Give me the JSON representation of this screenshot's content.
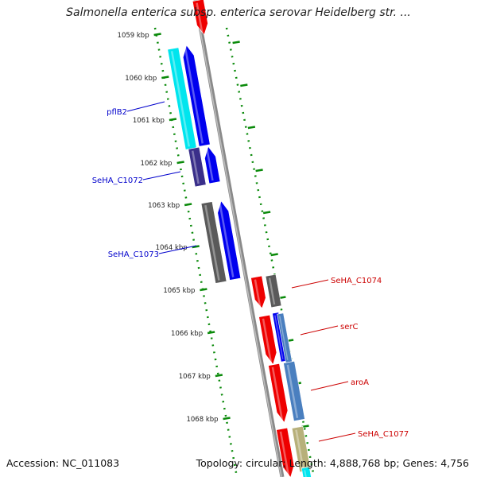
{
  "title": "Salmonella enterica subsp. enterica serovar Heidelberg str. ...",
  "footer": {
    "accession": "Accession: NC_011083",
    "summary": "Topology: circular; Length: 4,888,768 bp; Genes: 4,756"
  },
  "ticks": [
    {
      "label": "1059 kbp",
      "kbp": 1059
    },
    {
      "label": "1060 kbp",
      "kbp": 1060
    },
    {
      "label": "1061 kbp",
      "kbp": 1061
    },
    {
      "label": "1062 kbp",
      "kbp": 1062
    },
    {
      "label": "1063 kbp",
      "kbp": 1063
    },
    {
      "label": "1064 kbp",
      "kbp": 1064
    },
    {
      "label": "1065 kbp",
      "kbp": 1065
    },
    {
      "label": "1066 kbp",
      "kbp": 1066
    },
    {
      "label": "1067 kbp",
      "kbp": 1067
    },
    {
      "label": "1068 kbp",
      "kbp": 1068
    }
  ],
  "colors": {
    "backbone": "#8a8a8a",
    "tick": "#0a8a0a",
    "label_forward": "#0000cc",
    "label_reverse": "#cc0000",
    "forward_cds": "#0000ee",
    "reverse_cds": "#ee0000"
  },
  "gene_labels": [
    {
      "name": "pflB2",
      "strand": "forward"
    },
    {
      "name": "SeHA_C1072",
      "strand": "forward"
    },
    {
      "name": "SeHA_C1073",
      "strand": "forward"
    },
    {
      "name": "SeHA_C1074",
      "strand": "reverse"
    },
    {
      "name": "serC",
      "strand": "reverse"
    },
    {
      "name": "aroA",
      "strand": "reverse"
    },
    {
      "name": "SeHA_C1077",
      "strand": "reverse"
    }
  ]
}
